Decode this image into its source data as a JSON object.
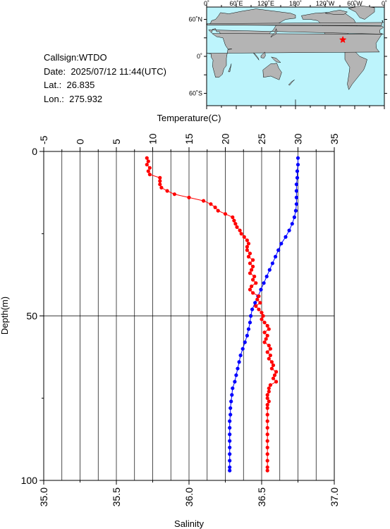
{
  "station": {
    "callsign_line": "Callsign:WTDO",
    "date_label": "Date:",
    "date_value": "2025/07/12 11:44(UTC)",
    "lat_label": "Lat.:",
    "lat_value": "26.835",
    "lon_label": "Lon.:",
    "lon_value": "275.932"
  },
  "map": {
    "top_labels": [
      "0˚",
      "60˚E",
      "120˚E",
      "180˚",
      "120˚W",
      "60˚W",
      "0˚"
    ],
    "left_labels": [
      "60˚N",
      "0˚",
      "60˚S"
    ],
    "ocean_color": "#bdf4fc",
    "land_color": "#b4b4b4",
    "marker_color": "#ff0000",
    "marker_lon": 275.932,
    "marker_lat": 26.835
  },
  "chart_data": {
    "type": "scatter",
    "top_axis_label": "Temperature(C)",
    "bottom_axis_label": "Salinity",
    "left_axis_label": "Depth(m)",
    "temperature_range": [
      -5,
      35
    ],
    "salinity_range": [
      35.0,
      37.0
    ],
    "depth_range": [
      0,
      100
    ],
    "temperature_ticks": [
      "-5",
      "0",
      "5",
      "10",
      "15",
      "20",
      "25",
      "30",
      "35"
    ],
    "salinity_ticks": [
      "35.0",
      "35.5",
      "36.0",
      "36.5",
      "37.0"
    ],
    "depth_ticks": [
      "0",
      "50",
      "100"
    ],
    "series": [
      {
        "color": "#0000ff",
        "axis": "temperature",
        "depth": [
          2,
          4,
          6,
          8,
          10,
          12,
          14,
          16,
          18,
          20,
          22,
          24,
          26,
          28,
          30,
          32,
          34,
          36,
          38,
          40,
          42,
          44,
          46,
          48,
          50,
          52,
          54,
          56,
          58,
          60,
          62,
          64,
          66,
          68,
          70,
          72,
          74,
          76,
          78,
          80,
          82,
          84,
          86,
          88,
          90,
          92,
          94,
          96,
          97
        ],
        "values": [
          30.0,
          30.0,
          29.9,
          29.9,
          29.8,
          29.8,
          29.8,
          29.8,
          29.7,
          29.5,
          29.2,
          28.8,
          28.3,
          27.7,
          27.3,
          26.9,
          26.5,
          26.1,
          25.7,
          25.3,
          24.9,
          24.5,
          24.1,
          23.7,
          23.5,
          23.4,
          23.2,
          23.0,
          22.7,
          22.4,
          22.1,
          21.9,
          21.7,
          21.5,
          21.3,
          21.0,
          20.9,
          20.8,
          20.7,
          20.7,
          20.6,
          20.6,
          20.6,
          20.6,
          20.6,
          20.6,
          20.6,
          20.6,
          20.6
        ]
      },
      {
        "color": "#ff0000",
        "axis": "salinity",
        "depth": [
          2,
          3,
          4,
          5,
          6,
          7,
          8,
          9,
          10,
          11,
          12,
          13,
          14,
          15,
          16,
          17,
          18,
          19,
          20,
          21,
          22,
          23,
          24,
          25,
          26,
          27,
          28,
          29,
          30,
          31,
          32,
          33,
          34,
          35,
          36,
          37,
          38,
          39,
          40,
          41,
          42,
          43,
          44,
          45,
          46,
          47,
          48,
          49,
          50,
          51,
          52,
          53,
          54,
          55,
          56,
          57,
          58,
          59,
          60,
          61,
          62,
          63,
          64,
          65,
          66,
          67,
          68,
          69,
          70,
          71,
          72,
          73,
          74,
          75,
          76,
          77,
          78,
          80,
          82,
          84,
          86,
          88,
          90,
          92,
          94,
          96,
          97
        ],
        "values": [
          35.71,
          35.72,
          35.71,
          35.73,
          35.72,
          35.73,
          35.8,
          35.8,
          35.8,
          35.81,
          35.85,
          35.9,
          36.0,
          36.1,
          36.15,
          36.18,
          36.2,
          36.25,
          36.3,
          36.31,
          36.32,
          36.33,
          36.35,
          36.36,
          36.38,
          36.4,
          36.41,
          36.4,
          36.4,
          36.42,
          36.41,
          36.44,
          36.42,
          36.44,
          36.43,
          36.42,
          36.45,
          36.44,
          36.46,
          36.43,
          36.42,
          36.44,
          36.48,
          36.47,
          36.49,
          36.46,
          36.48,
          36.5,
          36.51,
          36.5,
          36.52,
          36.54,
          36.55,
          36.52,
          36.54,
          36.53,
          36.52,
          36.55,
          36.56,
          36.54,
          36.56,
          36.55,
          36.57,
          36.58,
          36.57,
          36.6,
          36.59,
          36.58,
          36.6,
          36.56,
          36.55,
          36.55,
          36.54,
          36.54,
          36.55,
          36.54,
          36.54,
          36.54,
          36.54,
          36.54,
          36.54,
          36.54,
          36.54,
          36.54,
          36.54,
          36.54,
          36.54
        ]
      }
    ]
  }
}
